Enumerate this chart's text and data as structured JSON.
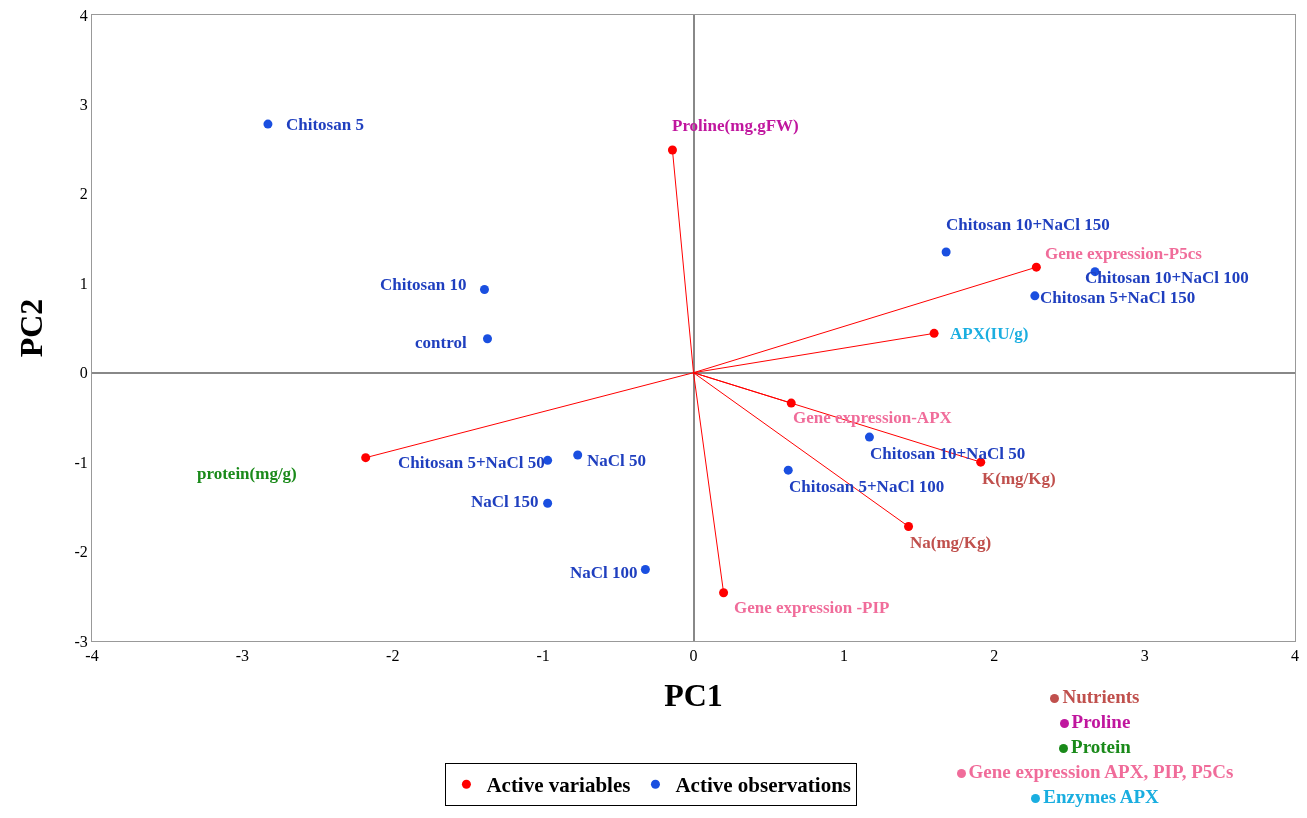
{
  "chart_data": {
    "type": "scatter",
    "xlabel": "PC1",
    "ylabel": "PC2",
    "xlim": [
      -4,
      4
    ],
    "xticks": [
      -4,
      -3,
      -2,
      -1,
      0,
      1,
      2,
      3,
      4
    ],
    "ylim": [
      -3,
      4
    ],
    "yticks": [
      -3,
      -2,
      -1,
      0,
      1,
      2,
      3,
      4
    ],
    "legend": "bottom",
    "marker": "circle",
    "series": [
      {
        "type": "line",
        "marker": "none",
        "color": "#ff0000",
        "x": [
          0,
          -0.14,
          null,
          0,
          2.28,
          null,
          0,
          1.6,
          null,
          0,
          0.65,
          null,
          0,
          1.91,
          null,
          0,
          1.43,
          null,
          0,
          0.2,
          null,
          0,
          -2.18
        ],
        "values": [
          0,
          2.49,
          null,
          0,
          1.18,
          null,
          0,
          0.44,
          null,
          0,
          -0.34,
          null,
          0,
          -1.0,
          null,
          0,
          -1.72,
          null,
          0,
          -2.46,
          null,
          0,
          -0.95
        ]
      },
      {
        "name": "Active variables",
        "color": "#ff0000",
        "x": [
          -0.14,
          2.28,
          1.6,
          0.65,
          1.91,
          1.43,
          0.2,
          -2.18
        ],
        "values": [
          2.49,
          1.18,
          0.44,
          -0.34,
          -1.0,
          -1.72,
          -2.46,
          -0.95
        ]
      },
      {
        "name": "Active observations",
        "color": "#1a4fe0",
        "x": [
          -2.83,
          -1.39,
          -1.37,
          1.68,
          2.67,
          2.27,
          1.17,
          0.63,
          -0.97,
          -0.77,
          -0.97,
          -0.32
        ],
        "values": [
          2.78,
          0.93,
          0.38,
          1.35,
          1.13,
          0.86,
          -0.72,
          -1.09,
          -0.98,
          -0.92,
          -1.46,
          -2.2
        ]
      }
    ],
    "annotations": [
      {
        "text": "Proline(mg.gFW)",
        "x": -0.14,
        "y": 2.49
      },
      {
        "text": "Gene expression-P5cs",
        "x": 2.28,
        "y": 1.18
      },
      {
        "text": "APX(IU/g)",
        "x": 1.6,
        "y": 0.44
      },
      {
        "text": "Gene expression-APX",
        "x": 0.65,
        "y": -0.34
      },
      {
        "text": "K(mg/Kg)",
        "x": 1.91,
        "y": -1.0
      },
      {
        "text": "Na(mg/Kg)",
        "x": 1.43,
        "y": -1.72
      },
      {
        "text": "Gene expression -PIP",
        "x": 0.2,
        "y": -2.46
      },
      "protein(mg/g)",
      {
        "text": "Chitosan 5",
        "x": -2.83,
        "y": 2.78
      },
      {
        "text": "Chitosan 10",
        "x": -1.39,
        "y": 0.93
      },
      {
        "text": "control",
        "x": -1.37,
        "y": 0.38
      },
      {
        "text": "Chitosan 10+NaCl 150",
        "x": 1.68,
        "y": 1.35
      },
      {
        "text": "Chitosan 10+NaCl 100",
        "x": 2.67,
        "y": 1.13
      },
      {
        "text": "Chitosan 5+NaCl 150",
        "x": 2.27,
        "y": 0.86
      },
      {
        "text": "Chitosan 10+NaCl 50",
        "x": 1.17,
        "y": -0.72
      },
      {
        "text": "Chitosan 5+NaCl 100",
        "x": 0.63,
        "y": -1.09
      },
      {
        "text": "Chitosan 5+NaCl 50",
        "x": -0.97,
        "y": -0.98
      },
      {
        "text": "NaCl 50",
        "x": -0.77,
        "y": -0.92
      },
      {
        "text": "NaCl 150",
        "x": -0.97,
        "y": -1.46
      },
      {
        "text": "NaCl 100",
        "x": -0.32,
        "y": -2.2
      },
      "Nutrients",
      "Proline",
      "Protein",
      "Gene expression APX, PIP, P5Cs",
      "Enzymes APX"
    ]
  }
}
